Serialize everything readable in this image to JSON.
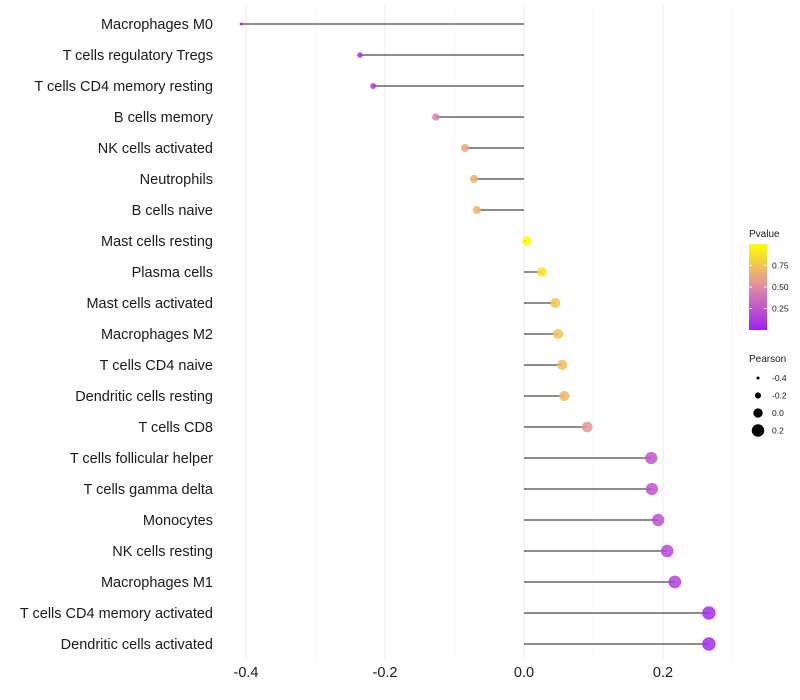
{
  "chart_data": {
    "type": "lollipop",
    "title": "",
    "xlabel": "",
    "ylabel": "",
    "xlim": [
      -0.42,
      0.29
    ],
    "xticks": [
      -0.4,
      -0.2,
      0.0,
      0.2
    ],
    "xtick_labels": [
      "-0.4",
      "-0.2",
      "0.0",
      "0.2"
    ],
    "grid": true,
    "categories": [
      "Macrophages M0",
      "T cells regulatory  Tregs ",
      "T cells CD4 memory resting",
      "B cells memory",
      "NK cells activated",
      "Neutrophils",
      "B cells naive",
      "Mast cells resting",
      "Plasma cells",
      "Mast cells activated",
      "Macrophages M2",
      "T cells CD4 naive",
      "Dendritic cells resting",
      "T cells CD8",
      "T cells follicular helper",
      "T cells gamma delta",
      "Monocytes",
      "NK cells resting",
      "Macrophages M1",
      "T cells CD4 memory activated",
      "Dendritic cells activated"
    ],
    "values": [
      -0.407,
      -0.236,
      -0.217,
      -0.127,
      -0.085,
      -0.072,
      -0.068,
      0.004,
      0.026,
      0.045,
      0.049,
      0.055,
      0.058,
      0.091,
      0.183,
      0.184,
      0.193,
      0.206,
      0.217,
      0.266,
      0.266
    ],
    "pvalues": [
      0.0,
      0.08,
      0.1,
      0.45,
      0.62,
      0.68,
      0.7,
      0.99,
      0.88,
      0.76,
      0.75,
      0.72,
      0.7,
      0.55,
      0.25,
      0.24,
      0.22,
      0.18,
      0.15,
      0.05,
      0.05
    ],
    "legend": {
      "placement": "right",
      "color": {
        "title": "Pvalue",
        "ticks": [
          0.25,
          0.5,
          0.75
        ],
        "tick_labels": [
          "0.25",
          "0.50",
          "0.75"
        ],
        "range": [
          0.0,
          1.0
        ],
        "low_color": "#a020f0",
        "mid_color": "#e08aa8",
        "high_color": "#ffff00"
      },
      "size": {
        "title": "Pearson",
        "values": [
          -0.4,
          -0.2,
          0.0,
          0.2
        ],
        "labels": [
          "-0.4",
          "-0.2",
          "0.0",
          "0.2"
        ]
      }
    }
  }
}
